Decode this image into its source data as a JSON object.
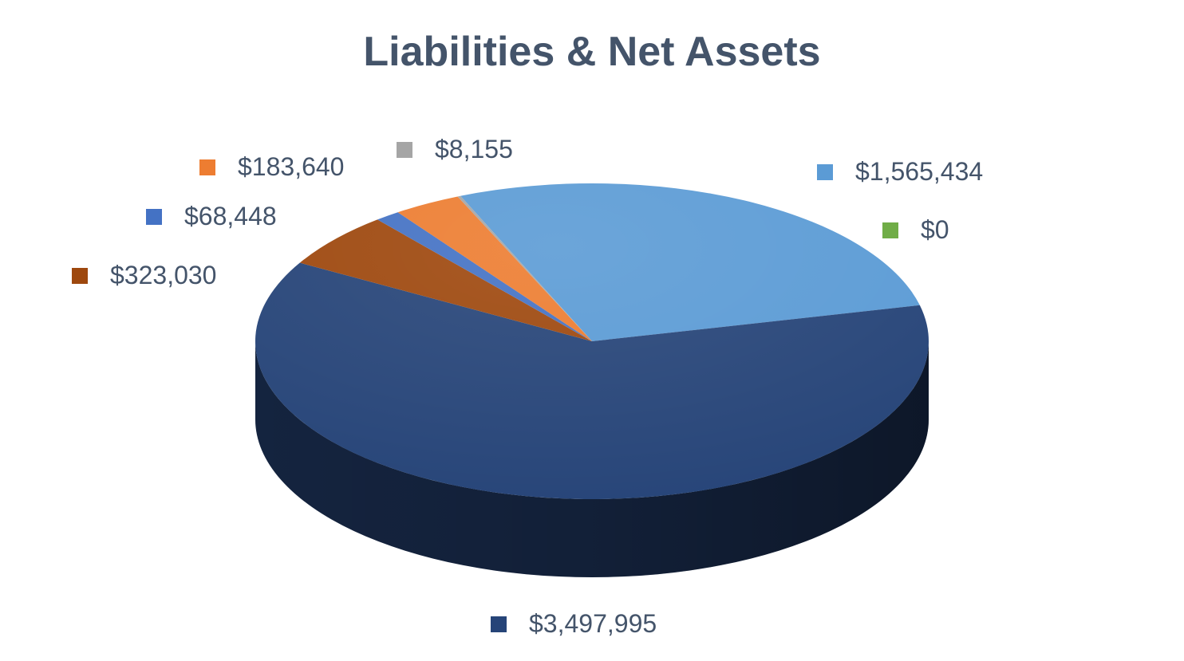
{
  "chart_data": {
    "type": "pie",
    "style": "3d",
    "title": "Liabilities & Net Assets",
    "legend": "none",
    "series": [
      {
        "values": [
          1565434,
          0,
          3497995,
          323030,
          68448,
          183640,
          8155
        ],
        "labels": [
          "$1,565,434",
          "$0",
          "$3,497,995",
          "$323,030",
          "$68,448",
          "$183,640",
          "$8,155"
        ],
        "colors": [
          "#5b9bd5",
          "#70ad47",
          "#264478",
          "#9e480e",
          "#4472c4",
          "#ed7d31",
          "#a5a5a5"
        ]
      }
    ]
  },
  "colors": {
    "title": "#44546a",
    "label_text": "#44546a",
    "background": "#ffffff"
  }
}
